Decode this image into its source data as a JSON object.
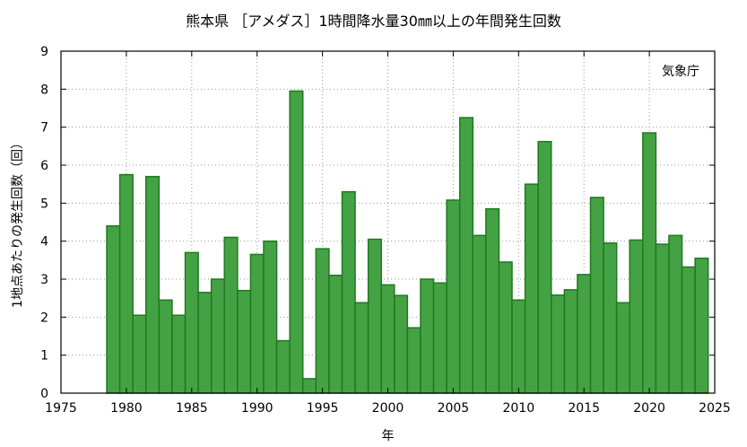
{
  "chart_data": {
    "type": "bar",
    "title": "熊本県 ［アメダス］1時間降水量30㎜以上の年間発生回数",
    "xlabel": "年",
    "ylabel": "1地点あたりの発生回数（回）",
    "source": "気象庁",
    "xlim": [
      1975,
      2025
    ],
    "ylim": [
      0,
      9
    ],
    "xticks": [
      1975,
      1980,
      1985,
      1990,
      1995,
      2000,
      2005,
      2010,
      2015,
      2020,
      2025
    ],
    "yticks": [
      0,
      1,
      2,
      3,
      4,
      5,
      6,
      7,
      8,
      9
    ],
    "grid": true,
    "bar_color": "#44a244",
    "bar_edge_color": "#1f7a1f",
    "categories": [
      1979,
      1980,
      1981,
      1982,
      1983,
      1984,
      1985,
      1986,
      1987,
      1988,
      1989,
      1990,
      1991,
      1992,
      1993,
      1994,
      1995,
      1996,
      1997,
      1998,
      1999,
      2000,
      2001,
      2002,
      2003,
      2004,
      2005,
      2006,
      2007,
      2008,
      2009,
      2010,
      2011,
      2012,
      2013,
      2014,
      2015,
      2016,
      2017,
      2018,
      2019,
      2020,
      2021,
      2022,
      2023,
      2024
    ],
    "values": [
      4.4,
      5.75,
      2.05,
      5.7,
      2.45,
      2.05,
      3.7,
      2.65,
      3.0,
      4.1,
      2.7,
      3.65,
      4.0,
      1.38,
      7.95,
      0.38,
      3.8,
      3.1,
      5.3,
      2.38,
      4.05,
      2.85,
      2.57,
      1.72,
      3.0,
      2.9,
      5.08,
      7.25,
      4.15,
      4.85,
      3.45,
      2.45,
      5.5,
      6.62,
      2.58,
      2.72,
      3.12,
      5.15,
      3.95,
      2.38,
      4.03,
      6.85,
      3.92,
      4.15,
      3.32,
      3.55
    ]
  }
}
